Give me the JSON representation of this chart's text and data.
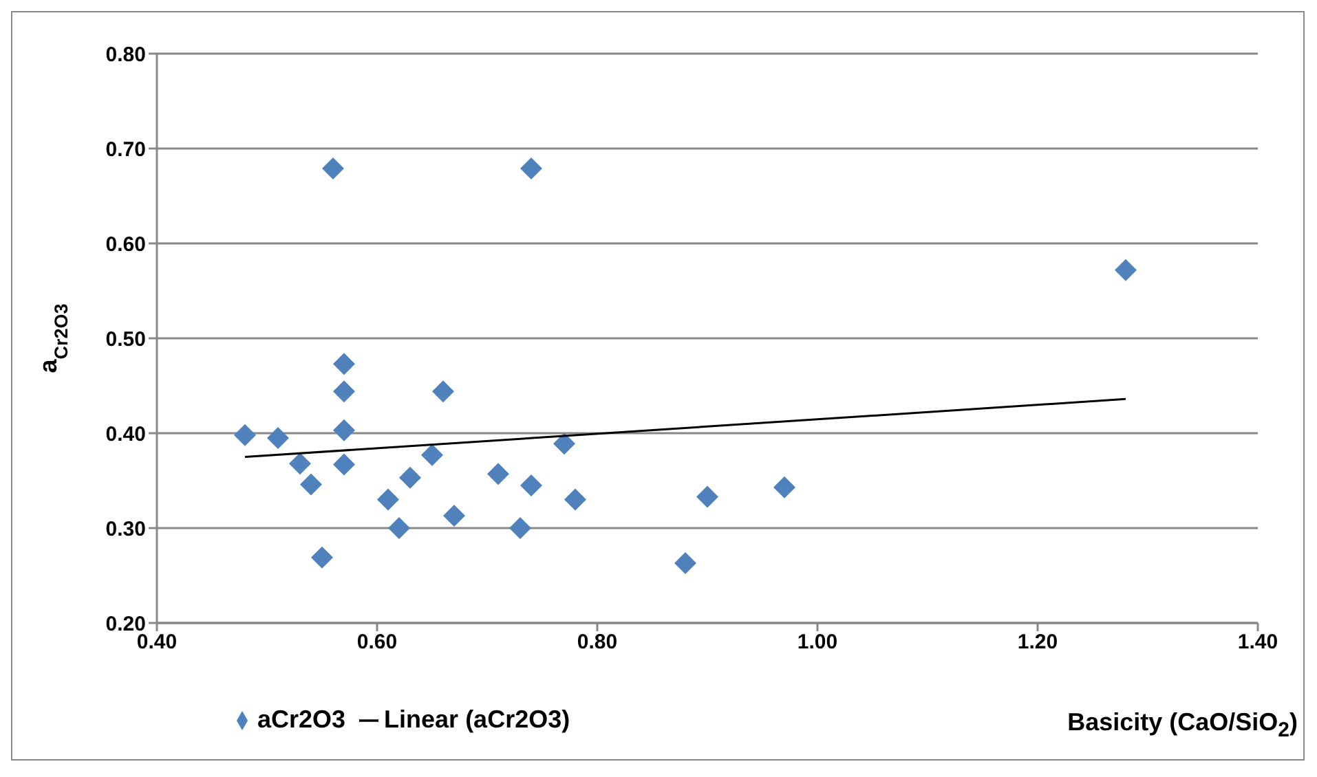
{
  "chart_data": {
    "type": "scatter",
    "xlabel": "Basicity (CaO/SiO$_{2}$)",
    "ylabel": "a$_{Cr2O3}$",
    "xlim": [
      0.4,
      1.4
    ],
    "xticks": [
      {
        "value": 0.4,
        "label": "0.40"
      },
      {
        "value": 0.6,
        "label": "0.60"
      },
      {
        "value": 0.8,
        "label": "0.80"
      },
      {
        "value": 1.0,
        "label": "1.00"
      },
      {
        "value": 1.2,
        "label": "1.20"
      },
      {
        "value": 1.4,
        "label": "1.40"
      }
    ],
    "ylim": [
      0.2,
      0.8
    ],
    "yticks": [
      {
        "value": 0.2,
        "label": "0.20"
      },
      {
        "value": 0.3,
        "label": "0.30"
      },
      {
        "value": 0.4,
        "label": "0.40"
      },
      {
        "value": 0.5,
        "label": "0.50"
      },
      {
        "value": 0.6,
        "label": "0.60"
      },
      {
        "value": 0.7,
        "label": "0.70"
      },
      {
        "value": 0.8,
        "label": "0.80"
      }
    ],
    "grid": "y",
    "legend": "bottom left",
    "series": [
      {
        "name": "aCr2O3",
        "marker": "diamond",
        "color": "#4f81bd",
        "x": [
          0.48,
          0.51,
          0.53,
          0.54,
          0.55,
          0.56,
          0.57,
          0.57,
          0.57,
          0.57,
          0.61,
          0.62,
          0.63,
          0.65,
          0.66,
          0.67,
          0.71,
          0.73,
          0.74,
          0.74,
          0.77,
          0.78,
          0.88,
          0.9,
          0.97,
          1.28
        ],
        "values": [
          0.398,
          0.395,
          0.368,
          0.346,
          0.269,
          0.679,
          0.473,
          0.444,
          0.403,
          0.367,
          0.33,
          0.3,
          0.353,
          0.377,
          0.444,
          0.313,
          0.357,
          0.3,
          0.679,
          0.345,
          0.389,
          0.33,
          0.263,
          0.333,
          0.343,
          0.572
        ]
      },
      {
        "name": "Linear (aCr2O3)",
        "type": "line",
        "marker": "none",
        "color": "#000000",
        "x": [
          0.48,
          1.28
        ],
        "values": [
          0.375,
          0.436
        ]
      }
    ]
  }
}
